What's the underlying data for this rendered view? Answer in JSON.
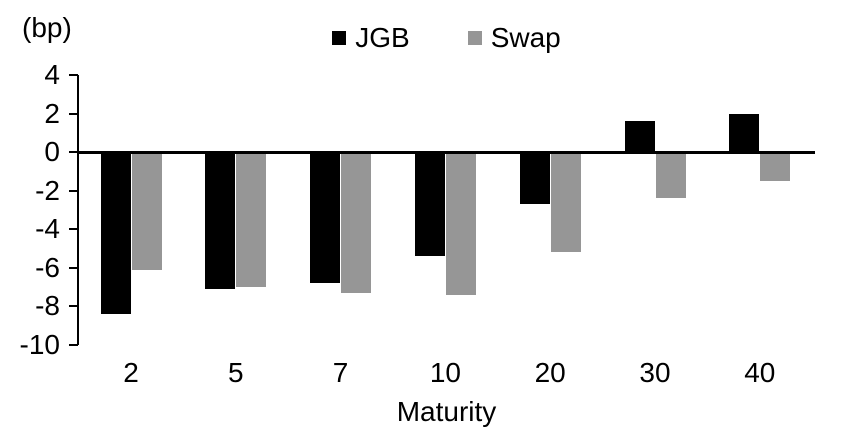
{
  "chart_data": {
    "type": "bar",
    "title": "",
    "unit_label": "(bp)",
    "xlabel": "Maturity",
    "ylabel": "",
    "categories": [
      "2",
      "5",
      "7",
      "10",
      "20",
      "30",
      "40"
    ],
    "series": [
      {
        "name": "JGB",
        "color": "#000000",
        "values": [
          -8.4,
          -7.1,
          -6.8,
          -5.4,
          -2.7,
          1.6,
          2.0
        ]
      },
      {
        "name": "Swap",
        "color": "#969696",
        "values": [
          -6.1,
          -7.0,
          -7.3,
          -7.4,
          -5.2,
          -2.4,
          -1.5
        ]
      }
    ],
    "ylim": [
      -10,
      4
    ],
    "yticks": [
      4,
      2,
      0,
      -2,
      -4,
      -6,
      -8,
      -10
    ],
    "grid": false,
    "legend_position": "top-center",
    "axis_color": "#000000",
    "background_color": "#ffffff"
  }
}
